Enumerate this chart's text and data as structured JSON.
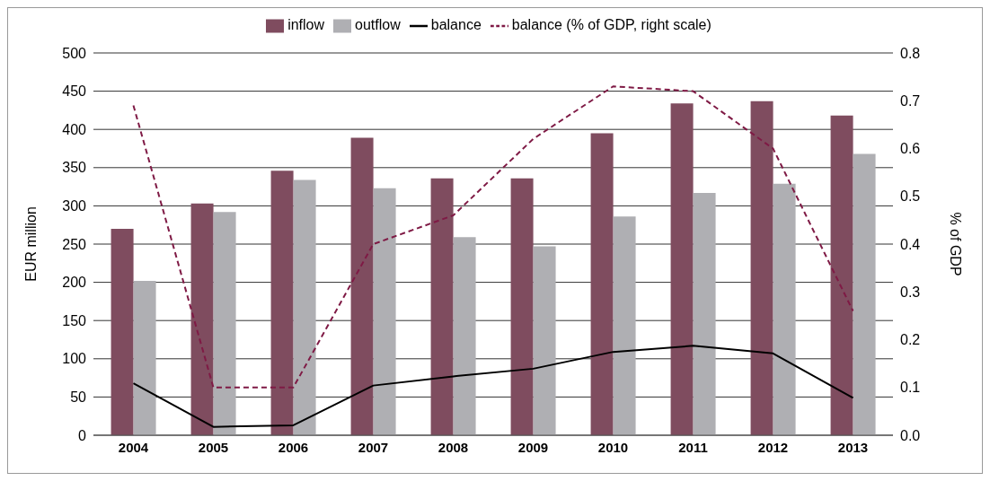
{
  "chart_data": {
    "type": "bar",
    "categories": [
      "2004",
      "2005",
      "2006",
      "2007",
      "2008",
      "2009",
      "2010",
      "2011",
      "2012",
      "2013"
    ],
    "ylabel": "EUR million",
    "y2label": "% of GDP",
    "series": [
      {
        "name": "inflow",
        "color": "#7f4c5f",
        "values": [
          270,
          303,
          346,
          389,
          336,
          336,
          395,
          434,
          437,
          418
        ]
      },
      {
        "name": "outflow",
        "color": "#afafb3",
        "values": [
          202,
          292,
          334,
          323,
          259,
          247,
          286,
          317,
          329,
          368
        ]
      },
      {
        "name": "balance",
        "type": "line",
        "color": "#000000",
        "line_style": "solid",
        "values": [
          68,
          11,
          13,
          65,
          77,
          87,
          109,
          117,
          107,
          49
        ]
      },
      {
        "name": "balance (% of GDP, right scale)",
        "type": "line",
        "axis": "y2",
        "color": "#7f1a45",
        "line_style": "dashed",
        "values": [
          0.69,
          0.1,
          0.1,
          0.4,
          0.46,
          0.62,
          0.73,
          0.72,
          0.6,
          0.26
        ]
      }
    ],
    "ylim": [
      0,
      500
    ],
    "yticks": [
      0,
      50,
      100,
      150,
      200,
      250,
      300,
      350,
      400,
      450,
      500
    ],
    "y2lim": [
      0,
      0.8
    ],
    "y2ticks": [
      {
        "value": 0,
        "label": "0.0"
      },
      0.1,
      0.2,
      0.3,
      0.4,
      0.5,
      0.6,
      0.7,
      0.8
    ],
    "grid": "y",
    "legend": "top",
    "marker": "none"
  }
}
